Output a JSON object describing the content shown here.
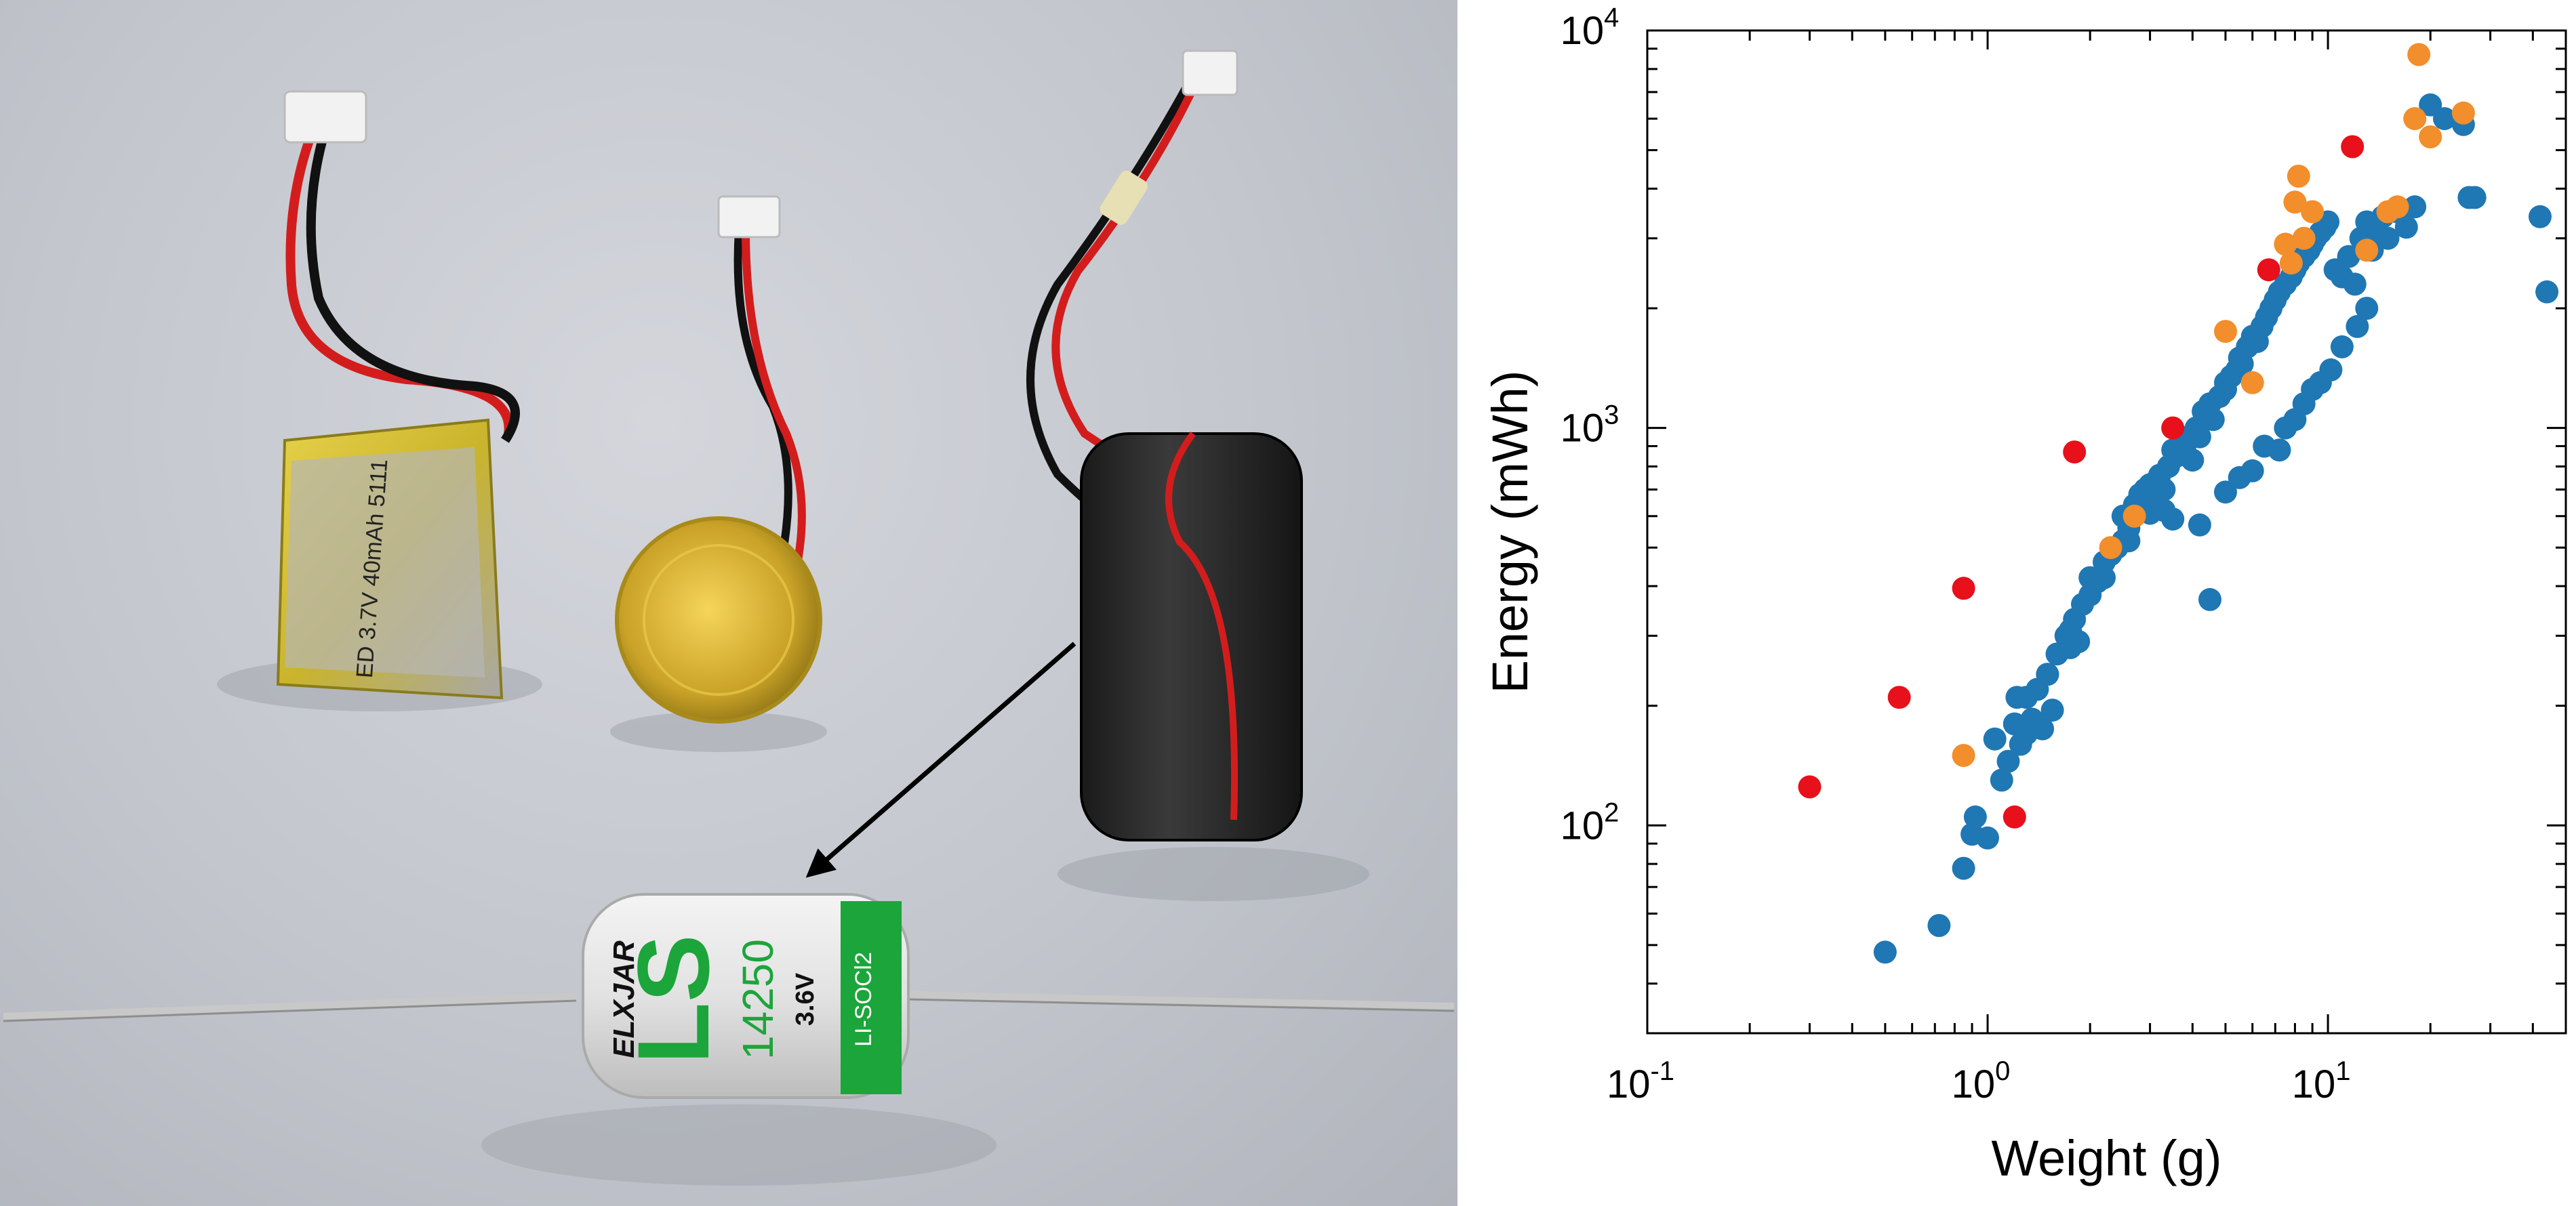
{
  "photo": {
    "cell_brand": "ELXJAR",
    "cell_logo": "LS",
    "cell_model": "14250",
    "cell_voltage": "3.6V",
    "cell_chemistry": "LI-SOCl2",
    "pouch_label": "ED 3.7V 40mAh 5111"
  },
  "colors": {
    "series_blue": "#1f77b4",
    "series_orange": "#f28e2b",
    "series_red": "#e8101b"
  },
  "chart_data": {
    "type": "scatter",
    "title": "",
    "xlabel": "Weight (g)",
    "ylabel": "Energy (mWh)",
    "xscale": "log",
    "yscale": "log",
    "xlim": [
      0.1,
      50
    ],
    "ylim": [
      30,
      10000
    ],
    "grid": false,
    "legend": "none",
    "xticks": [
      {
        "value": 0.1,
        "base": "10",
        "exp": "-1"
      },
      {
        "value": 1,
        "base": "10",
        "exp": "0"
      },
      {
        "value": 10,
        "base": "10",
        "exp": "1"
      }
    ],
    "yticks": [
      {
        "value": 100,
        "base": "10",
        "exp": "2"
      },
      {
        "value": 1000,
        "base": "10",
        "exp": "3"
      },
      {
        "value": 10000,
        "base": "10",
        "exp": "4"
      }
    ],
    "series": [
      {
        "color": "#1f77b4",
        "x": [
          0.5,
          0.72,
          0.85,
          0.9,
          0.92,
          1.0,
          1.05,
          1.1,
          1.15,
          1.2,
          1.22,
          1.25,
          1.3,
          1.35,
          1.4,
          1.45,
          1.5,
          1.55,
          1.6,
          1.7,
          1.75,
          1.8,
          1.85,
          1.9,
          2.0,
          2.0,
          2.1,
          2.2,
          2.3,
          2.4,
          2.5,
          2.5,
          2.6,
          2.7,
          2.8,
          2.9,
          3.0,
          3.0,
          3.1,
          3.2,
          3.3,
          3.4,
          3.5,
          3.6,
          3.8,
          3.9,
          4.0,
          4.1,
          4.2,
          4.3,
          4.5,
          4.6,
          4.8,
          5.0,
          5.0,
          5.2,
          5.4,
          5.5,
          5.6,
          5.8,
          6.0,
          6.2,
          6.4,
          6.6,
          6.8,
          7.0,
          7.2,
          7.5,
          7.8,
          8.0,
          8.2,
          8.5,
          8.8,
          9.0,
          9.2,
          9.5,
          9.8,
          10.0,
          10.5,
          11.0,
          11.5,
          12.0,
          12.5,
          13.0,
          13.5,
          14.0,
          14.5,
          15.0,
          16.0,
          17.0,
          18.0,
          20.0,
          22.0,
          25.0,
          26.0,
          27.0,
          42.0,
          44.0,
          3.3,
          4.2,
          5.0,
          6.0,
          7.2,
          8.0,
          9.0,
          10.2,
          11.0,
          12.2,
          13.0,
          1.3,
          1.5,
          1.75,
          2.2,
          2.6,
          3.5,
          4.5,
          5.5,
          6.5,
          7.5,
          8.5,
          9.5
        ],
        "y": [
          48,
          56,
          78,
          95,
          105,
          93,
          165,
          130,
          145,
          180,
          210,
          160,
          170,
          185,
          220,
          175,
          240,
          195,
          270,
          300,
          310,
          330,
          290,
          360,
          380,
          420,
          410,
          460,
          480,
          500,
          520,
          600,
          560,
          640,
          680,
          700,
          720,
          610,
          650,
          760,
          700,
          800,
          880,
          850,
          900,
          950,
          830,
          1000,
          950,
          1100,
          1150,
          1050,
          1200,
          1300,
          1250,
          1350,
          1400,
          1500,
          1450,
          1600,
          1700,
          1650,
          1800,
          1900,
          2000,
          2100,
          2200,
          2300,
          2400,
          2500,
          2600,
          2700,
          2800,
          2900,
          3000,
          3100,
          3200,
          3300,
          2500,
          2400,
          2700,
          2300,
          3000,
          3300,
          2800,
          3100,
          3400,
          3000,
          3500,
          3200,
          3600,
          6500,
          6000,
          5800,
          3800,
          3800,
          3400,
          2200,
          620,
          570,
          690,
          780,
          880,
          1050,
          1250,
          1400,
          1600,
          1800,
          2000,
          210,
          240,
          280,
          420,
          520,
          590,
          370,
          750,
          900,
          1000,
          1150,
          1300
        ]
      },
      {
        "color": "#f28e2b",
        "x": [
          0.85,
          2.3,
          2.7,
          5.0,
          6.0,
          7.5,
          7.8,
          8.0,
          8.2,
          8.5,
          9.0,
          13.0,
          15.0,
          16.0,
          18.0,
          18.5,
          20.0,
          25.0
        ],
        "y": [
          150,
          500,
          600,
          1750,
          1300,
          2900,
          2600,
          3700,
          4300,
          3000,
          3500,
          2800,
          3500,
          3600,
          6000,
          8700,
          5400,
          6200
        ]
      },
      {
        "color": "#e8101b",
        "x": [
          0.3,
          0.55,
          0.85,
          1.2,
          1.8,
          3.5,
          6.7,
          11.8
        ],
        "y": [
          125,
          210,
          395,
          105,
          870,
          1000,
          2500,
          5100
        ]
      }
    ]
  }
}
